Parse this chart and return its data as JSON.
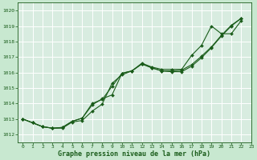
{
  "title": "Graphe pression niveau de la mer (hPa)",
  "bg_color": "#c8e8d0",
  "plot_bg": "#d8ece0",
  "grid_color": "#ffffff",
  "line_color": "#1a5c1a",
  "marker_color": "#1a5c1a",
  "xlim": [
    -0.5,
    23
  ],
  "ylim": [
    1011.5,
    1020.5
  ],
  "xticks": [
    0,
    1,
    2,
    3,
    4,
    5,
    6,
    7,
    8,
    9,
    10,
    11,
    12,
    13,
    14,
    15,
    16,
    17,
    18,
    19,
    20,
    21,
    22,
    23
  ],
  "yticks": [
    1012,
    1013,
    1014,
    1015,
    1016,
    1017,
    1018,
    1019,
    1020
  ],
  "series": [
    [
      1013.0,
      1012.75,
      1012.5,
      1012.4,
      1012.4,
      1012.8,
      1012.9,
      1013.5,
      1013.95,
      1015.3,
      1015.85,
      1016.1,
      1016.6,
      1016.35,
      1016.2,
      1016.2,
      1016.2,
      1017.1,
      1017.75,
      1019.0,
      1018.5,
      1018.5,
      1019.35
    ],
    [
      1013.0,
      1012.75,
      1012.5,
      1012.4,
      1012.45,
      1012.85,
      1013.05,
      1014.0,
      1014.25,
      1015.1,
      1015.95,
      1016.1,
      1016.55,
      1016.3,
      1016.1,
      1016.1,
      1016.15,
      1016.5,
      1017.05,
      1017.65,
      1018.4,
      1019.05,
      1019.5
    ],
    [
      1013.0,
      1012.75,
      1012.5,
      1012.4,
      1012.45,
      1012.85,
      1013.05,
      1013.9,
      1014.3,
      1014.55,
      1015.95,
      1016.1,
      1016.55,
      1016.3,
      1016.1,
      1016.05,
      1016.05,
      1016.4,
      1016.95,
      1017.6,
      1018.35,
      1019.0,
      1019.5
    ]
  ]
}
